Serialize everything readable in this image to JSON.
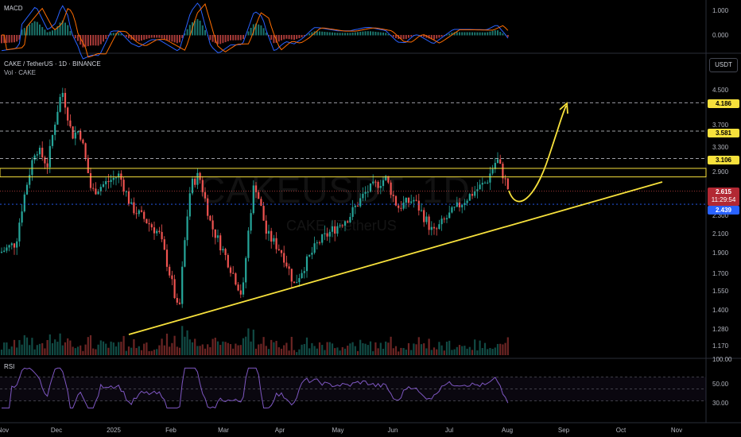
{
  "header": {
    "pair": "CAKE / TetherUS · 1D · BINANCE",
    "volume_label": "Vol · CAKE",
    "currency_button": "USDT",
    "watermark": "CAKEUSDT, 1D",
    "watermark_sub": "CAKE / TetherUS"
  },
  "macd": {
    "label": "MACD",
    "ticks": [
      "1.000",
      "0.000"
    ]
  },
  "rsi": {
    "label": "RSI",
    "ticks": [
      "100.00",
      "50.00",
      "30.00"
    ]
  },
  "price_ticks": [
    "4.500",
    "3.700",
    "3.300",
    "2.900",
    "2.300",
    "2.100",
    "1.900",
    "1.700",
    "1.550",
    "1.400",
    "1.280",
    "1.170"
  ],
  "badges": {
    "level1": "4.186",
    "level2": "3.581",
    "level3": "3.106",
    "current_price": "2.615",
    "countdown": "11:29:54",
    "blue_level": "2.439"
  },
  "colors": {
    "up": "#26a69a",
    "down": "#ef5350",
    "level": "#f7e13c",
    "rsi": "#7e57c2",
    "blue": "#2962ff"
  },
  "chart_data": {
    "type": "candlestick",
    "title": "CAKE / TetherUS · 1D · BINANCE",
    "x_axis_labels": [
      "Nov",
      "Dec",
      "2025",
      "Feb",
      "Mar",
      "Apr",
      "May",
      "Jun",
      "Jul",
      "Aug",
      "Sep",
      "Oct",
      "Nov"
    ],
    "approx_close_path": [
      {
        "date": "Nov",
        "price": 1.9
      },
      {
        "date": "Dec",
        "price": 3.4
      },
      {
        "date": "Dec",
        "price": 4.5
      },
      {
        "date": "2025",
        "price": 2.8
      },
      {
        "date": "Feb",
        "price": 1.4
      },
      {
        "date": "Mar",
        "price": 2.9
      },
      {
        "date": "Mar",
        "price": 1.5
      },
      {
        "date": "Apr",
        "price": 2.5
      },
      {
        "date": "Apr",
        "price": 1.7
      },
      {
        "date": "May",
        "price": 2.4
      },
      {
        "date": "Jun",
        "price": 2.9
      },
      {
        "date": "Jun",
        "price": 2.2
      },
      {
        "date": "Jul",
        "price": 2.7
      },
      {
        "date": "Aug",
        "price": 3.1
      },
      {
        "date": "Aug",
        "price": 2.615
      }
    ],
    "horizontal_levels": [
      4.186,
      3.581,
      3.106,
      2.439
    ],
    "resistance_zone": [
      2.82,
      2.95
    ],
    "ascending_trendline": {
      "start": {
        "date": "Jan",
        "price": 1.25
      },
      "end": {
        "date": "Sep",
        "price": 2.85
      }
    },
    "projection_arrow": {
      "from": {
        "date": "Aug",
        "price": 2.6
      },
      "to": {
        "date": "Sep",
        "price": 4.186
      }
    },
    "rsi_levels": [
      70,
      50,
      30
    ]
  }
}
